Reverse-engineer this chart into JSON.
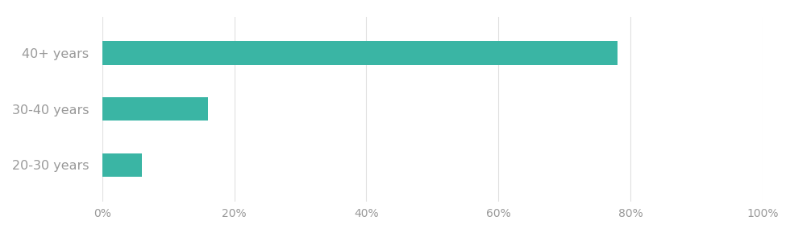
{
  "categories": [
    "20-30 years",
    "30-40 years",
    "40+ years"
  ],
  "values": [
    0.06,
    0.16,
    0.78
  ],
  "bar_color": "#3ab5a4",
  "bar_height": 0.42,
  "xlim": [
    0,
    1.0
  ],
  "xticks": [
    0,
    0.2,
    0.4,
    0.6,
    0.8,
    1.0
  ],
  "xtick_labels": [
    "0%",
    "20%",
    "40%",
    "60%",
    "80%",
    "100%"
  ],
  "label_fontsize": 11.5,
  "tick_fontsize": 10,
  "label_color": "#999999",
  "background_color": "#ffffff",
  "grid_color": "#e0e0e0"
}
